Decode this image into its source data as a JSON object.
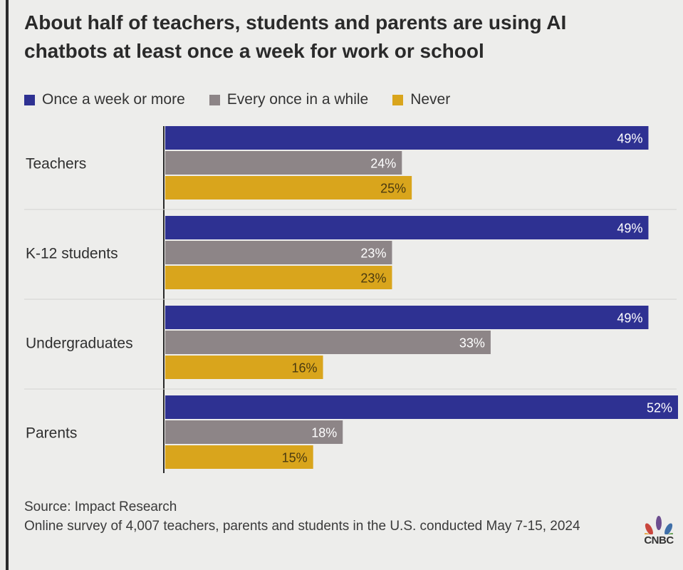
{
  "title": "About half of teachers, students and parents are using AI chatbots at least once a week for work or school",
  "footer": {
    "source": "Source: Impact Research",
    "note": "Online survey of 4,007 teachers, parents and students in the U.S. conducted May 7-15, 2024"
  },
  "logo": {
    "text": "CNBC",
    "icon": "peacock-icon"
  },
  "colors": {
    "series": [
      "#2e3192",
      "#8d8587",
      "#d9a51c"
    ],
    "background": "#ededeb"
  },
  "chart_data": {
    "type": "bar",
    "orientation": "horizontal",
    "categories": [
      "Teachers",
      "K-12 students",
      "Undergraduates",
      "Parents"
    ],
    "series": [
      {
        "name": "Once a week or more",
        "values": [
          49,
          49,
          49,
          52
        ],
        "labels": [
          "49%",
          "49%",
          "49%",
          "52%"
        ]
      },
      {
        "name": "Every once in a while",
        "values": [
          24,
          23,
          33,
          18
        ],
        "labels": [
          "24%",
          "23%",
          "33%",
          "18%"
        ]
      },
      {
        "name": "Never",
        "values": [
          25,
          23,
          16,
          15
        ],
        "labels": [
          "25%",
          "23%",
          "16%",
          "15%"
        ]
      }
    ],
    "xlim": [
      0,
      52
    ],
    "legend_position": "top-left",
    "grid": false,
    "data_labels": "inside-end"
  }
}
